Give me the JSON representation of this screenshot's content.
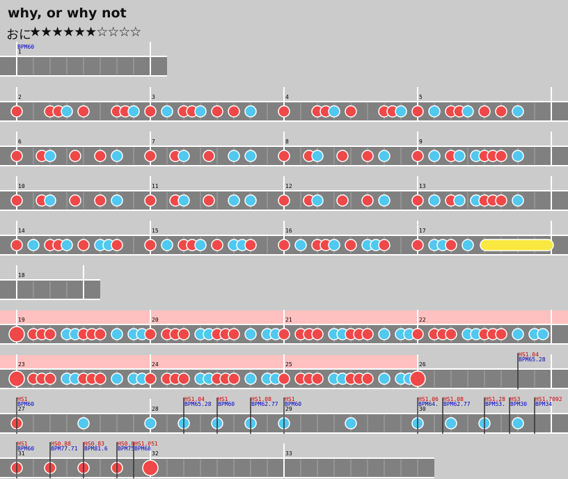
{
  "header": {
    "title": "why, or why not",
    "difficulty": "おに",
    "stars": "★★★★★★☆☆☆☆"
  },
  "measures": [
    "1",
    "2",
    "3",
    "4",
    "5",
    "6",
    "7",
    "8",
    "9",
    "10",
    "11",
    "12",
    "13",
    "14",
    "15",
    "16",
    "17",
    "18",
    "19",
    "20",
    "21",
    "22",
    "23",
    "24",
    "25",
    "26",
    "27",
    "28",
    "29",
    "30",
    "31",
    "32",
    "33"
  ],
  "events": [
    {
      "bpm": "BPM60"
    },
    {
      "hs": "HS1.04",
      "bpm": "BPM65.28"
    },
    {
      "hs": "HS1",
      "bpm": "BPM60"
    },
    {
      "hs": "HS1.04",
      "bpm": "BPM65.28"
    },
    {
      "hs": "HS1",
      "bpm": "BPM60"
    },
    {
      "hs": "HS1.08",
      "bpm": "BPM62.77"
    },
    {
      "hs": "HS1",
      "bpm": "BPM60"
    },
    {
      "hs": "HS1.06",
      "bpm": "BPM64."
    },
    {
      "hs": "HS1.08",
      "bpm": "BPM62.77"
    },
    {
      "hs": "HS1.28",
      "bpm": "BPM53."
    },
    {
      "hs": "HS3",
      "bpm": "BPM30"
    },
    {
      "hs": "HS1.7092",
      "bpm": "BPM34"
    },
    {
      "hs": "HS1",
      "bpm": "BPM60"
    },
    {
      "hs": "HS0.88",
      "bpm": "BPM77.71"
    },
    {
      "hs": "HS0.83",
      "bpm": "BPM81.6"
    },
    {
      "hs": "HS0.8",
      "bpm": "BPM75"
    },
    {
      "hs": "HS1.051",
      "bpm": "BPM68"
    }
  ]
}
